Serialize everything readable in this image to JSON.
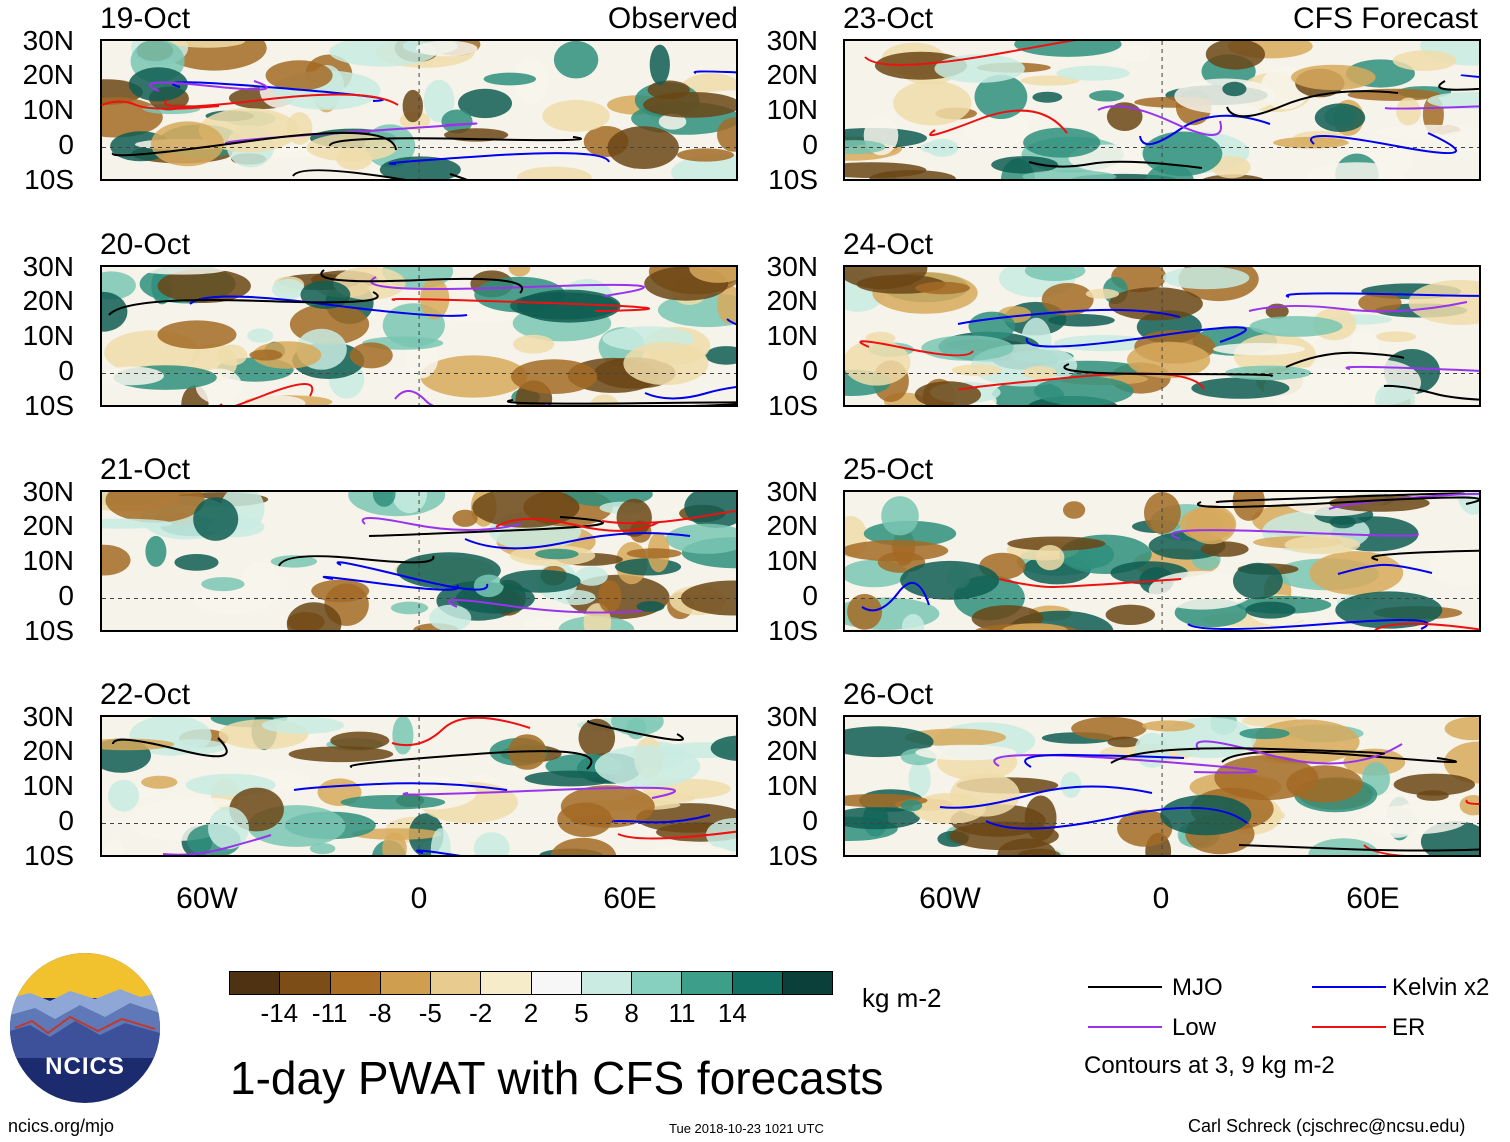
{
  "title": "1-day PWAT with CFS forecasts",
  "observed_label": "Observed",
  "forecast_label": "CFS Forecast",
  "left_panels": [
    {
      "date": "19-Oct"
    },
    {
      "date": "20-Oct"
    },
    {
      "date": "21-Oct"
    },
    {
      "date": "22-Oct"
    }
  ],
  "right_panels": [
    {
      "date": "23-Oct"
    },
    {
      "date": "24-Oct"
    },
    {
      "date": "25-Oct"
    },
    {
      "date": "26-Oct"
    }
  ],
  "lat_labels": [
    "30N",
    "20N",
    "10N",
    "0",
    "10S"
  ],
  "lon_labels": [
    "60W",
    "0",
    "60E"
  ],
  "colorbar": {
    "units": "kg m-2",
    "ticks": [
      "-14",
      "-11",
      "-8",
      "-5",
      "-2",
      "2",
      "5",
      "8",
      "11",
      "14"
    ],
    "colors": [
      "#4e3212",
      "#7c4d16",
      "#a96d26",
      "#cf9f4f",
      "#e8cc8f",
      "#f6ecc9",
      "#f7f7f7",
      "#c9ebe2",
      "#87cfbf",
      "#3d9e8a",
      "#136f61",
      "#0a4039"
    ]
  },
  "legend": {
    "items": [
      {
        "label": "MJO",
        "color": "#000000"
      },
      {
        "label": "Kelvin x2",
        "color": "#0000ee"
      },
      {
        "label": "Low",
        "color": "#9933ee"
      },
      {
        "label": "ER",
        "color": "#ee1111"
      }
    ],
    "note": "Contours at 3, 9 kg m-2"
  },
  "logo": {
    "text": "NCICS"
  },
  "footer": {
    "left": "ncics.org/mjo",
    "center": "Tue 2018-10-23 1021 UTC",
    "right": "Carl Schreck (cjschrec@ncsu.edu)"
  }
}
